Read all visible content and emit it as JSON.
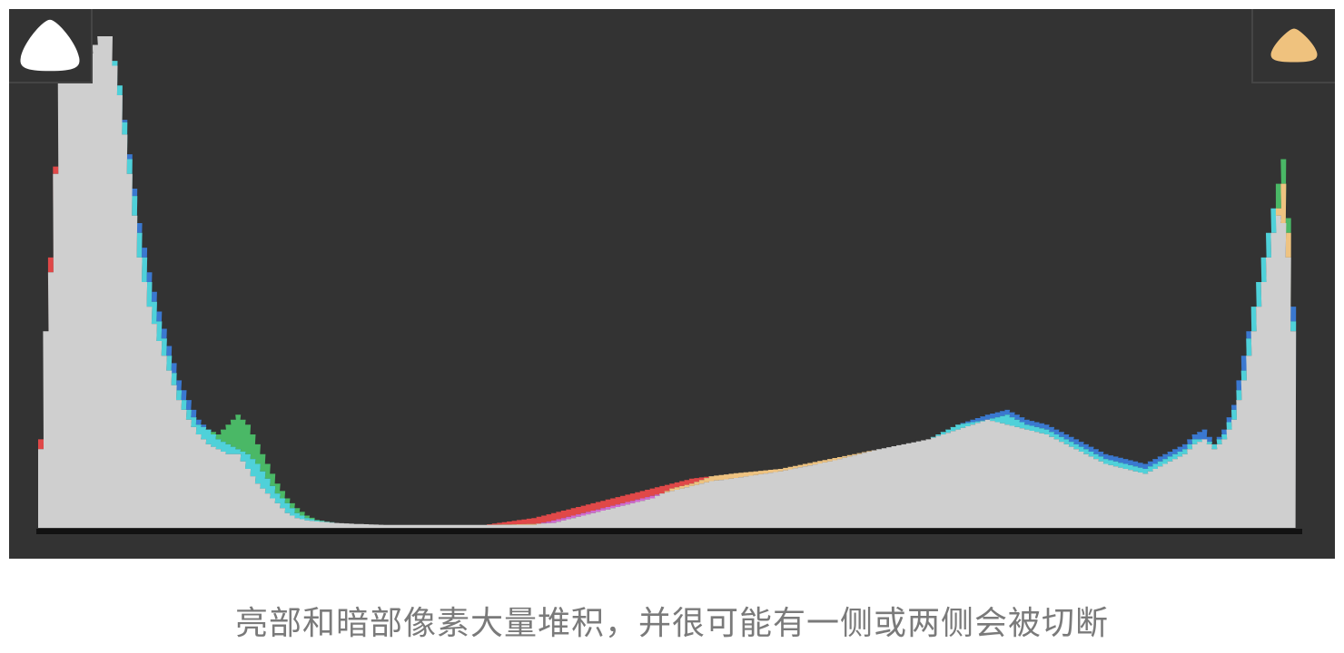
{
  "caption": "亮部和暗部像素大量堆积，并很可能有一侧或两侧会被切断",
  "colors": {
    "background": "#333333",
    "luminance": "#cfcfcf",
    "blue": "#3a78d0",
    "cyan": "#4fd1d9",
    "yellow": "#eec381",
    "red": "#e04848",
    "green": "#4ab866",
    "magenta": "#d06ad0",
    "shadow_clip_icon": "#ffffff",
    "highlight_clip_icon": "#efc27e"
  },
  "icons": {
    "shadow_clip": "shadow-clipping-warning-triangle-icon",
    "highlight_clip": "highlight-clipping-warning-triangle-icon"
  },
  "chart_data": {
    "type": "area",
    "title": "",
    "xlabel": "",
    "ylabel": "",
    "xlim": [
      0,
      255
    ],
    "ylim": [
      0,
      100
    ],
    "grid": false,
    "x": [
      0,
      1,
      2,
      4,
      8,
      12,
      14,
      16,
      18,
      20,
      22,
      24,
      26,
      28,
      30,
      32,
      34,
      36,
      38,
      40,
      42,
      44,
      46,
      48,
      50,
      52,
      54,
      56,
      60,
      64,
      70,
      80,
      90,
      100,
      104,
      108,
      112,
      116,
      120,
      124,
      128,
      132,
      136,
      140,
      150,
      160,
      170,
      180,
      186,
      192,
      196,
      200,
      204,
      208,
      212,
      216,
      220,
      224,
      228,
      230,
      232,
      234,
      236,
      238,
      240,
      242,
      244,
      246,
      248,
      250,
      252,
      253,
      254,
      255
    ],
    "series": [
      {
        "name": "",
        "values": [
          18,
          40,
          55,
          92,
          93,
          100,
          100,
          88,
          72,
          55,
          45,
          38,
          32,
          26,
          22,
          19,
          17,
          16,
          15,
          15,
          12,
          9,
          7,
          5,
          3,
          2,
          1.5,
          1.3,
          1.0,
          0.8,
          0.6,
          0.6,
          0.6,
          2,
          3,
          4,
          5,
          6,
          7,
          8,
          9,
          10,
          10.5,
          11,
          12,
          14,
          16,
          18,
          20,
          22,
          21,
          20,
          19,
          17,
          15,
          13,
          12,
          11,
          13,
          14,
          15,
          17,
          18,
          16,
          18,
          22,
          30,
          40,
          50,
          60,
          70,
          60,
          40,
          0
        ]
      },
      {
        "name": "",
        "values": [
          16,
          40,
          52,
          92,
          93,
          100,
          100,
          90,
          75,
          60,
          50,
          42,
          35,
          28,
          24,
          21,
          20,
          19,
          21,
          23,
          21,
          17,
          13,
          9,
          6,
          4,
          2.5,
          1.6,
          1.0,
          0.8,
          0.6,
          0.6,
          0.6,
          0.8,
          1,
          2,
          3,
          4,
          5,
          6,
          8,
          9,
          10.5,
          11,
          12,
          14,
          16,
          18,
          21,
          22,
          23,
          21,
          20,
          18,
          16,
          14,
          13,
          12,
          14,
          15,
          16,
          18,
          18,
          17,
          19,
          24,
          32,
          45,
          55,
          65,
          75,
          63,
          42,
          0
        ]
      },
      {
        "name": "",
        "values": [
          16,
          40,
          52,
          92,
          93,
          100,
          100,
          90,
          76,
          62,
          52,
          44,
          37,
          30,
          26,
          22,
          20,
          18,
          17,
          16,
          15,
          13,
          10,
          7,
          5,
          3,
          2,
          1.5,
          1.0,
          0.8,
          0.6,
          0.6,
          0.6,
          0.6,
          1.5,
          2.5,
          3.5,
          4.5,
          5.5,
          6.5,
          7.5,
          8.5,
          9.5,
          10,
          11.5,
          13.5,
          16,
          18,
          21,
          23,
          24,
          22,
          21,
          19,
          17,
          15,
          14,
          13,
          15,
          16,
          17,
          19,
          20,
          17,
          20,
          25,
          35,
          45,
          55,
          65,
          62,
          55,
          45,
          0
        ]
      }
    ]
  }
}
